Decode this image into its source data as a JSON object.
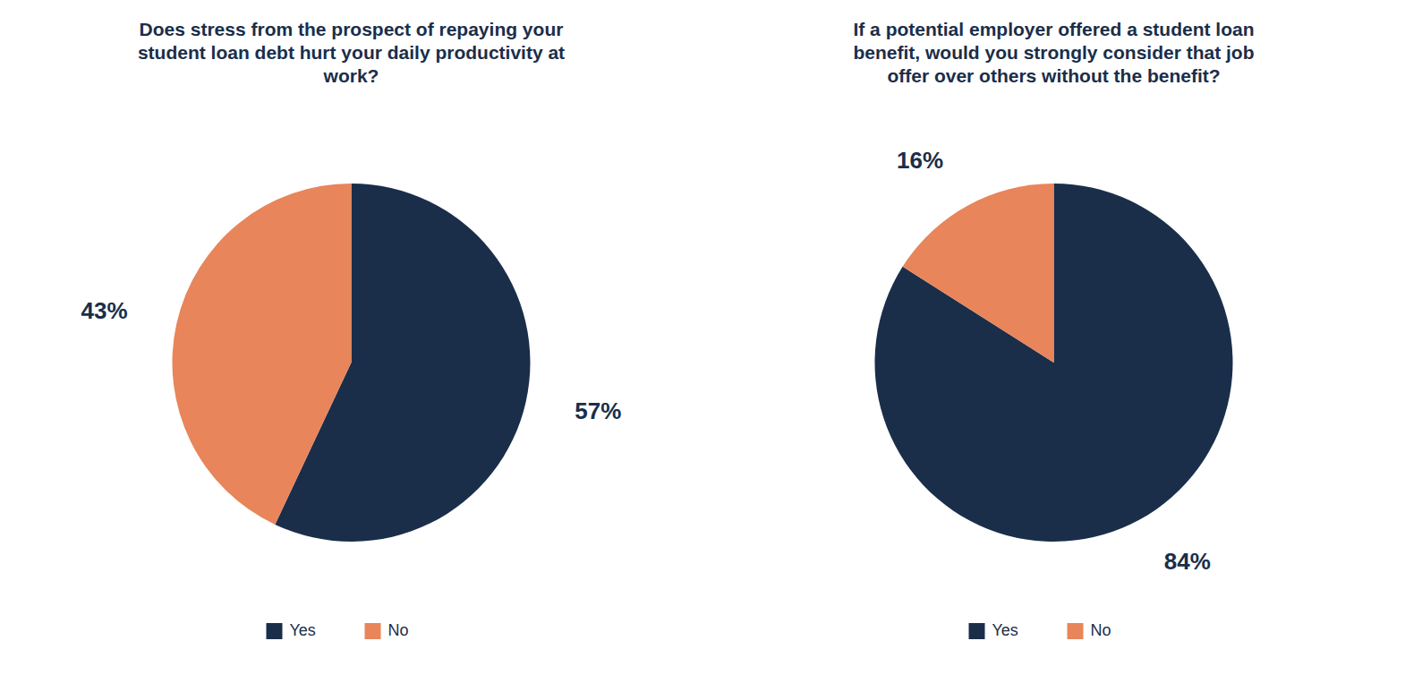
{
  "chart_data": [
    {
      "type": "pie",
      "title": "Does stress from the prospect of repaying your\nstudent loan debt hurt your daily productivity at\nwork?",
      "categories": [
        "Yes",
        "No"
      ],
      "values": [
        57,
        43
      ],
      "value_labels": [
        "57%",
        "43%"
      ],
      "colors": [
        "#1a2e4a",
        "#e8855a"
      ],
      "data_labels": true,
      "legend": "bottom"
    },
    {
      "type": "pie",
      "title": "If a potential employer offered a student loan\nbenefit, would you strongly consider that job\noffer over others without the benefit?",
      "categories": [
        "Yes",
        "No"
      ],
      "values": [
        84,
        16
      ],
      "value_labels": [
        "84%",
        "16%"
      ],
      "colors": [
        "#1a2e4a",
        "#e8855a"
      ],
      "data_labels": true,
      "legend": "bottom"
    }
  ]
}
